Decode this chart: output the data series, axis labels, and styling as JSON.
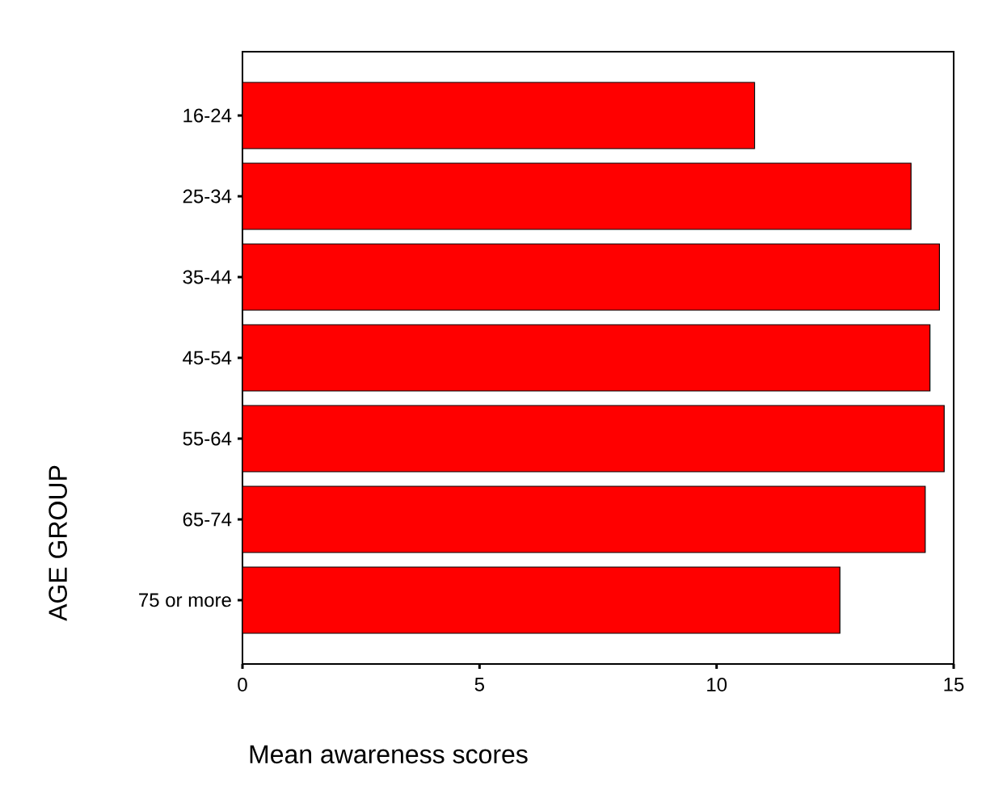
{
  "chart_data": {
    "type": "bar",
    "orientation": "horizontal",
    "xlabel": "Mean awareness scores",
    "ylabel": "AGE GROUP",
    "categories": [
      "16-24",
      "25-34",
      "35-44",
      "45-54",
      "55-64",
      "65-74",
      "75 or more"
    ],
    "values": [
      10.8,
      14.1,
      14.7,
      14.5,
      14.8,
      14.4,
      12.6
    ],
    "color": "#ff0000",
    "xlim": [
      0,
      15
    ],
    "xticks": [
      0,
      5,
      10,
      15
    ]
  }
}
